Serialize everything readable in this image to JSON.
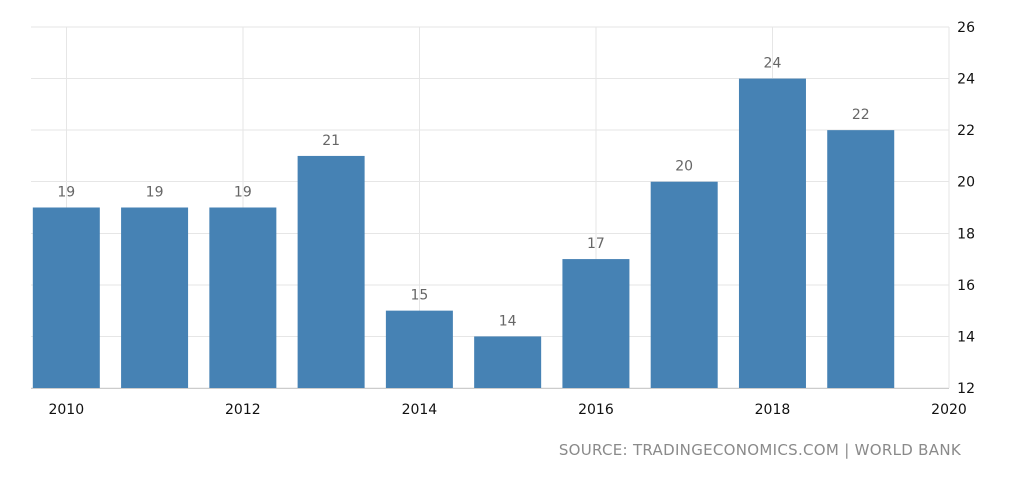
{
  "chart_data": {
    "type": "bar",
    "title": "",
    "xlabel": "",
    "ylabel": "",
    "x": [
      2010,
      2011,
      2012,
      2013,
      2014,
      2015,
      2016,
      2017,
      2018,
      2019
    ],
    "values": [
      19,
      19,
      19,
      21,
      15,
      14,
      17,
      20,
      24,
      22
    ],
    "data_labels": [
      "19",
      "19",
      "19",
      "21",
      "15",
      "14",
      "17",
      "20",
      "24",
      "22"
    ],
    "xlim": [
      2009.6,
      2020
    ],
    "ylim": [
      12,
      26
    ],
    "x_ticks": [
      2010,
      2012,
      2014,
      2016,
      2018,
      2020
    ],
    "x_tick_labels": [
      "2010",
      "2012",
      "2014",
      "2016",
      "2018",
      "2020"
    ],
    "y_ticks": [
      12,
      14,
      16,
      18,
      20,
      22,
      24,
      26
    ],
    "y_tick_labels": [
      "12",
      "14",
      "16",
      "18",
      "20",
      "22",
      "24",
      "26"
    ],
    "y_axis_side": "right",
    "grid": true,
    "bar_color": "#4682b4",
    "grid_color": "#e6e6e6"
  },
  "source": {
    "text": "SOURCE: TRADINGECONOMICS.COM | WORLD BANK"
  }
}
